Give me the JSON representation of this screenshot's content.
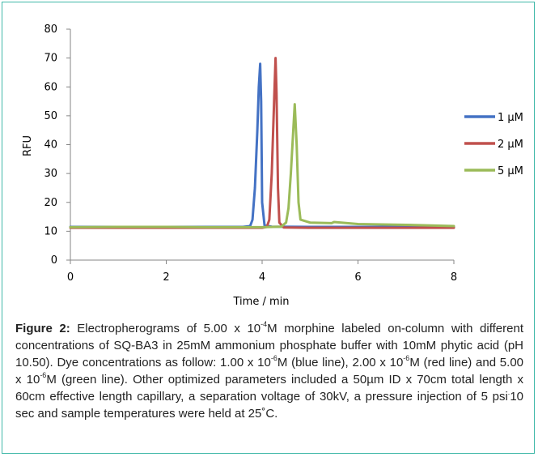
{
  "chart_data": {
    "type": "line",
    "xlabel": "Time / min",
    "ylabel": "RFU",
    "xlim": [
      0,
      8
    ],
    "ylim": [
      0,
      80
    ],
    "xticks": [
      0,
      2,
      4,
      6,
      8
    ],
    "yticks": [
      0,
      10,
      20,
      30,
      40,
      50,
      60,
      70,
      80
    ],
    "grid": false,
    "legend_position": "right",
    "series": [
      {
        "name": "1 µM",
        "color": "#4472c4",
        "x": [
          0,
          1,
          2,
          3,
          3.6,
          3.75,
          3.8,
          3.85,
          3.9,
          3.93,
          3.96,
          3.98,
          4.0,
          4.05,
          4.2,
          5,
          6,
          7,
          8
        ],
        "y": [
          11.5,
          11.5,
          11.5,
          11.5,
          11.5,
          11.8,
          14,
          25,
          45,
          60,
          68,
          55,
          20,
          12,
          11.6,
          11.5,
          11.5,
          11.5,
          11.5
        ]
      },
      {
        "name": "2 µM",
        "color": "#c0504d",
        "x": [
          0,
          1,
          2,
          3,
          4.0,
          4.1,
          4.15,
          4.2,
          4.25,
          4.28,
          4.3,
          4.33,
          4.36,
          4.45,
          5,
          6,
          7,
          8
        ],
        "y": [
          11.2,
          11.2,
          11.2,
          11.2,
          11.2,
          11.5,
          14,
          30,
          55,
          70,
          58,
          25,
          13,
          11.3,
          11.2,
          11.2,
          11.2,
          11.2
        ]
      },
      {
        "name": "5 µM",
        "color": "#9bbb59",
        "x": [
          0,
          1,
          2,
          3,
          4.0,
          4.4,
          4.5,
          4.55,
          4.6,
          4.65,
          4.68,
          4.72,
          4.76,
          4.8,
          5.0,
          5.45,
          5.5,
          6,
          7,
          8
        ],
        "y": [
          11.4,
          11.5,
          11.5,
          11.4,
          11.4,
          11.6,
          13,
          18,
          30,
          45,
          54,
          40,
          20,
          14,
          13,
          12.8,
          13.2,
          12.5,
          12.2,
          11.8
        ]
      }
    ]
  },
  "caption": {
    "label": "Figure 2:",
    "t1": " Electropherograms of 5.00 x 10",
    "s1": "-4",
    "t2": "M morphine labeled on-column with different concentrations of SQ-BA3 in 25mM ammonium phosphate buffer with 10mM phytic acid (pH 10.50). Dye concentrations as follow: 1.00 x 10",
    "s2": "-6",
    "t3": "M (blue line), 2.00 x 10",
    "s3": "-6",
    "t4": "M (red line) and 5.00 x 10",
    "s4": "-6",
    "t5": "M (green line). Other optimized parameters included a 50µm ID x 70cm total length x 60cm effective length capillary, a separation voltage of 30kV, a pressure injection of 5 psi",
    "s5": ".",
    "t6": "10 sec and sample temperatures were held at 25˚C."
  }
}
